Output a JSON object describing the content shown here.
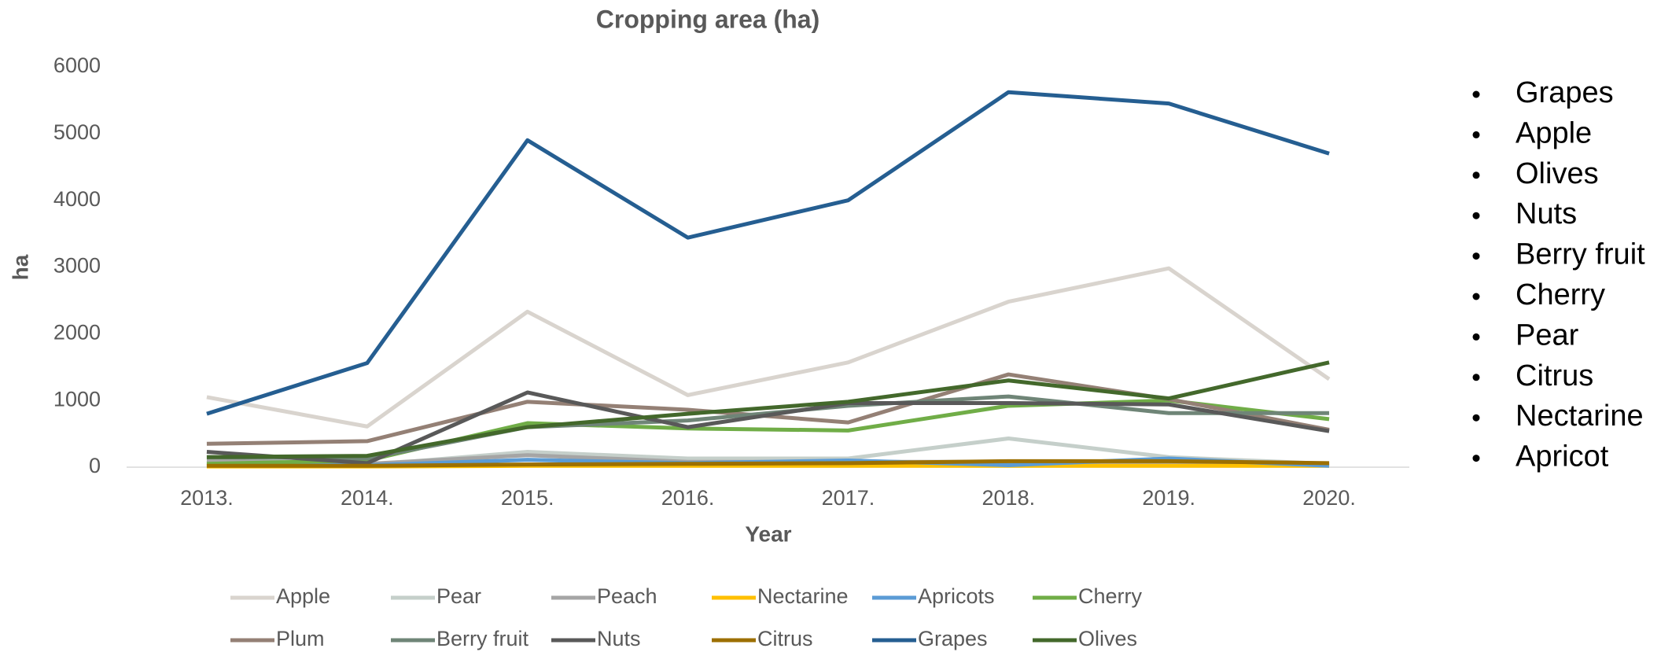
{
  "chart_data": {
    "type": "line",
    "title": "Cropping area (ha)",
    "x_label": "Year",
    "y_label": "ha",
    "categories": [
      "2013.",
      "2014.",
      "2015.",
      "2016.",
      "2017.",
      "2018.",
      "2019.",
      "2020."
    ],
    "ylim": [
      0,
      6000
    ],
    "yticks": [
      0,
      1000,
      2000,
      3000,
      4000,
      5000,
      6000
    ],
    "grid": false,
    "legend": "bottom",
    "series": [
      {
        "name": "Apple",
        "color": "#d9d4ce",
        "values": [
          1050,
          610,
          2330,
          1080,
          1570,
          2480,
          2980,
          1320
        ]
      },
      {
        "name": "Pear",
        "color": "#c5cfca",
        "values": [
          60,
          30,
          230,
          130,
          130,
          430,
          150,
          50
        ]
      },
      {
        "name": "Peach",
        "color": "#a5a5a5",
        "values": [
          100,
          50,
          180,
          80,
          80,
          80,
          60,
          40
        ]
      },
      {
        "name": "Nectarine",
        "color": "#ffc000",
        "values": [
          10,
          10,
          20,
          20,
          20,
          20,
          20,
          20
        ]
      },
      {
        "name": "Apricots",
        "color": "#5b9bd5",
        "values": [
          30,
          30,
          110,
          60,
          100,
          30,
          130,
          20
        ]
      },
      {
        "name": "Cherry",
        "color": "#70ad47",
        "values": [
          50,
          100,
          660,
          580,
          550,
          920,
          1000,
          720
        ]
      },
      {
        "name": "Plum",
        "color": "#948075",
        "values": [
          350,
          390,
          980,
          860,
          670,
          1390,
          1020,
          560
        ]
      },
      {
        "name": "Berry fruit",
        "color": "#6f8577",
        "values": [
          150,
          130,
          600,
          700,
          920,
          1060,
          810,
          810
        ]
      },
      {
        "name": "Nuts",
        "color": "#595959",
        "values": [
          230,
          60,
          1120,
          600,
          960,
          960,
          940,
          540
        ]
      },
      {
        "name": "Citrus",
        "color": "#9c6f00",
        "values": [
          20,
          20,
          40,
          50,
          60,
          90,
          90,
          60
        ]
      },
      {
        "name": "Grapes",
        "color": "#255e91",
        "values": [
          800,
          1560,
          4900,
          3440,
          4000,
          5620,
          5450,
          4700
        ]
      },
      {
        "name": "Olives",
        "color": "#43682b",
        "values": [
          150,
          170,
          600,
          800,
          980,
          1300,
          1030,
          1570
        ]
      }
    ]
  },
  "side_list": [
    "Grapes",
    "Apple",
    "Olives",
    "Nuts",
    "Berry fruit",
    "Cherry",
    "Pear",
    "Citrus",
    "Nectarine",
    "Apricot"
  ]
}
